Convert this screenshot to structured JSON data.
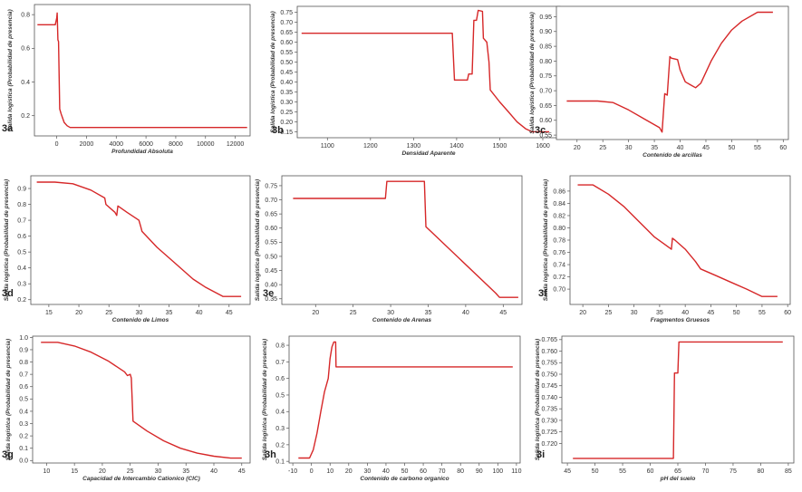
{
  "chart_data": [
    {
      "panel": "3a",
      "type": "line",
      "xlabel": "Profundidad Absoluta",
      "ylabel": "Salida logística (Probabilidad de presencia)",
      "xlim": [
        -1500,
        13000
      ],
      "ylim": [
        0.08,
        0.86
      ],
      "xticks": [
        0,
        2000,
        4000,
        6000,
        8000,
        10000,
        12000
      ],
      "yticks": [
        0.2,
        0.4,
        0.6,
        0.8
      ],
      "color": "#d62728",
      "x": [
        -1300,
        -100,
        0,
        30,
        80,
        120,
        200,
        300,
        500,
        700,
        900,
        1100,
        12800
      ],
      "y": [
        0.74,
        0.74,
        0.78,
        0.81,
        0.65,
        0.64,
        0.24,
        0.21,
        0.16,
        0.14,
        0.13,
        0.13,
        0.13
      ]
    },
    {
      "panel": "3b",
      "type": "line",
      "xlabel": "Densidad Aparente",
      "ylabel": "Salida logística (Probabilidad de presencia)",
      "xlim": [
        1030,
        1640
      ],
      "ylim": [
        0.12,
        0.78
      ],
      "xticks": [
        1100,
        1200,
        1300,
        1400,
        1500,
        1600
      ],
      "yticks": [
        0.15,
        0.2,
        0.25,
        0.3,
        0.35,
        0.4,
        0.45,
        0.5,
        0.55,
        0.6,
        0.65,
        0.7,
        0.75
      ],
      "color": "#d62728",
      "x": [
        1040,
        1390,
        1395,
        1425,
        1428,
        1436,
        1440,
        1446,
        1450,
        1460,
        1462,
        1470,
        1475,
        1478,
        1500,
        1520,
        1540,
        1560,
        1575,
        1615
      ],
      "y": [
        0.645,
        0.645,
        0.41,
        0.41,
        0.44,
        0.44,
        0.71,
        0.71,
        0.76,
        0.755,
        0.62,
        0.6,
        0.5,
        0.36,
        0.3,
        0.25,
        0.2,
        0.165,
        0.15,
        0.15
      ]
    },
    {
      "panel": "3c",
      "type": "line",
      "xlabel": "Contenido de arcillas",
      "ylabel": "Salida logística (Probabilidad de presencia)",
      "xlim": [
        16,
        61
      ],
      "ylim": [
        0.535,
        0.985
      ],
      "xticks": [
        20,
        25,
        30,
        35,
        40,
        45,
        50,
        55,
        60
      ],
      "yticks": [
        0.55,
        0.6,
        0.65,
        0.7,
        0.75,
        0.8,
        0.85,
        0.9,
        0.95
      ],
      "color": "#d62728",
      "x": [
        18,
        24,
        27,
        30,
        33,
        36,
        36.5,
        37,
        37.5,
        38,
        38.3,
        39.5,
        40,
        41,
        42,
        43,
        44,
        46,
        48,
        50,
        52,
        55,
        58
      ],
      "y": [
        0.665,
        0.665,
        0.66,
        0.635,
        0.605,
        0.575,
        0.56,
        0.69,
        0.685,
        0.815,
        0.81,
        0.805,
        0.77,
        0.73,
        0.72,
        0.71,
        0.725,
        0.8,
        0.86,
        0.905,
        0.935,
        0.965,
        0.965
      ]
    },
    {
      "panel": "3d",
      "type": "line",
      "xlabel": "Contenido de Limos",
      "ylabel": "Salida logística (Probabilidad de presencia)",
      "xlim": [
        12,
        48.5
      ],
      "ylim": [
        0.17,
        0.98
      ],
      "xticks": [
        15,
        20,
        25,
        30,
        35,
        40,
        45
      ],
      "yticks": [
        0.2,
        0.3,
        0.4,
        0.5,
        0.6,
        0.7,
        0.8,
        0.9
      ],
      "color": "#d62728",
      "x": [
        13,
        16,
        19,
        22,
        24.3,
        24.5,
        26,
        26.3,
        26.5,
        28,
        30,
        30.3,
        30.5,
        33,
        36,
        39,
        41,
        44,
        47
      ],
      "y": [
        0.94,
        0.94,
        0.93,
        0.89,
        0.84,
        0.8,
        0.75,
        0.73,
        0.79,
        0.75,
        0.7,
        0.66,
        0.63,
        0.53,
        0.43,
        0.33,
        0.28,
        0.22,
        0.22
      ]
    },
    {
      "panel": "3e",
      "type": "line",
      "xlabel": "Contenido de Arenas",
      "ylabel": "Salida logística (Probabilidad de presencia)",
      "xlim": [
        15.5,
        47.5
      ],
      "ylim": [
        0.33,
        0.785
      ],
      "xticks": [
        20,
        25,
        30,
        35,
        40,
        45
      ],
      "yticks": [
        0.35,
        0.4,
        0.45,
        0.5,
        0.55,
        0.6,
        0.65,
        0.7,
        0.75
      ],
      "color": "#d62728",
      "x": [
        17,
        29.3,
        29.5,
        34.5,
        34.7,
        44,
        44.5,
        47
      ],
      "y": [
        0.705,
        0.705,
        0.765,
        0.765,
        0.605,
        0.37,
        0.355,
        0.355
      ]
    },
    {
      "panel": "3f",
      "type": "line",
      "xlabel": "Fragmentos Gruesos",
      "ylabel": "Salida logística (Probabilidad de presencia)",
      "xlim": [
        17.5,
        60.5
      ],
      "ylim": [
        0.675,
        0.885
      ],
      "xticks": [
        20,
        25,
        30,
        35,
        40,
        45,
        50,
        55,
        60
      ],
      "yticks": [
        0.7,
        0.72,
        0.74,
        0.76,
        0.78,
        0.8,
        0.82,
        0.84,
        0.86
      ],
      "color": "#d62728",
      "x": [
        19,
        22,
        25,
        28,
        31,
        34,
        36,
        36.5,
        37,
        37.3,
        37.5,
        38,
        40,
        42,
        43,
        46,
        49,
        52,
        55,
        58
      ],
      "y": [
        0.87,
        0.87,
        0.855,
        0.835,
        0.81,
        0.785,
        0.773,
        0.77,
        0.767,
        0.765,
        0.783,
        0.78,
        0.765,
        0.745,
        0.733,
        0.722,
        0.711,
        0.7,
        0.688,
        0.688
      ]
    },
    {
      "panel": "3g",
      "type": "line",
      "xlabel": "Capacidad de Intercambio Cationico (CIC)",
      "ylabel": "Salida logística (Probabilidad de presencia)",
      "xlim": [
        7.5,
        46.5
      ],
      "ylim": [
        -0.02,
        1.01
      ],
      "xticks": [
        10,
        15,
        20,
        25,
        30,
        35,
        40,
        45
      ],
      "yticks": [
        0.0,
        0.1,
        0.2,
        0.3,
        0.4,
        0.5,
        0.6,
        0.7,
        0.8,
        0.9,
        1.0
      ],
      "color": "#d62728",
      "x": [
        9,
        12,
        15,
        18,
        21,
        24,
        24.5,
        25,
        25.2,
        25.5,
        28,
        31,
        34,
        37,
        40,
        43,
        45
      ],
      "y": [
        0.96,
        0.96,
        0.93,
        0.88,
        0.81,
        0.72,
        0.69,
        0.7,
        0.67,
        0.32,
        0.24,
        0.16,
        0.1,
        0.06,
        0.035,
        0.02,
        0.02
      ]
    },
    {
      "panel": "3h",
      "type": "line",
      "xlabel": "Contenido de carbono organico",
      "ylabel": "Salida logística (Probabilidad de presencia)",
      "xlim": [
        -12,
        112
      ],
      "ylim": [
        0.09,
        0.855
      ],
      "xticks": [
        -10,
        0,
        10,
        20,
        30,
        40,
        50,
        60,
        70,
        80,
        90,
        100,
        110
      ],
      "yticks": [
        0.1,
        0.2,
        0.3,
        0.4,
        0.5,
        0.6,
        0.7,
        0.8
      ],
      "color": "#d62728",
      "x": [
        -7,
        -1,
        1,
        3,
        5,
        7,
        9,
        10,
        11,
        12,
        13,
        13.2,
        108
      ],
      "y": [
        0.12,
        0.12,
        0.17,
        0.27,
        0.4,
        0.52,
        0.6,
        0.72,
        0.79,
        0.82,
        0.82,
        0.67,
        0.67
      ]
    },
    {
      "panel": "3i",
      "type": "line",
      "xlabel": "pH del suelo",
      "ylabel": "Salida logística (Probabilidad de presencia)",
      "xlim": [
        44,
        86
      ],
      "ylim": [
        0.7115,
        0.7665
      ],
      "xticks": [
        45,
        50,
        55,
        60,
        65,
        70,
        75,
        80,
        85
      ],
      "yticks": [
        0.72,
        0.725,
        0.73,
        0.735,
        0.74,
        0.745,
        0.75,
        0.755,
        0.76,
        0.765
      ],
      "color": "#d62728",
      "x": [
        46,
        64.2,
        64.4,
        65,
        65.2,
        84
      ],
      "y": [
        0.7135,
        0.7135,
        0.7505,
        0.7505,
        0.764,
        0.764
      ]
    }
  ]
}
